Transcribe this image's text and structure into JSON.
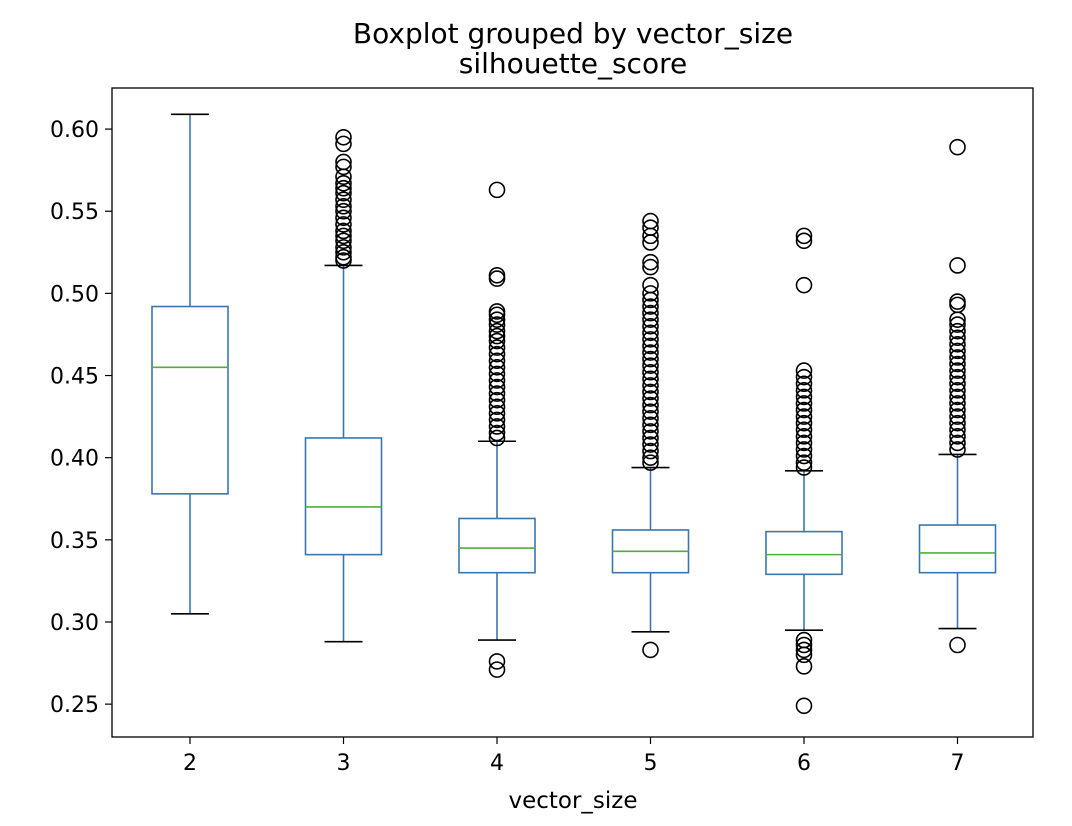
{
  "chart_data": {
    "type": "box",
    "title": "Boxplot grouped by vector_size",
    "subtitle": "silhouette_score",
    "xlabel": "vector_size",
    "ylabel": "",
    "ylim": [
      0.23,
      0.625
    ],
    "y_ticks": [
      "0.25",
      "0.30",
      "0.35",
      "0.40",
      "0.45",
      "0.50",
      "0.55",
      "0.60"
    ],
    "y_tick_values": [
      0.25,
      0.3,
      0.35,
      0.4,
      0.45,
      0.5,
      0.55,
      0.6
    ],
    "categories": [
      "2",
      "3",
      "4",
      "5",
      "6",
      "7"
    ],
    "grid": false,
    "legend": "none",
    "colors": {
      "box": "#3b75af",
      "median": "#4daf3a",
      "whisker_cap": "#000000",
      "flier": "#000000"
    },
    "boxes": [
      {
        "category": "2",
        "whislo": 0.305,
        "q1": 0.378,
        "median": 0.455,
        "q3": 0.492,
        "whishi": 0.609,
        "fliers": []
      },
      {
        "category": "3",
        "whislo": 0.288,
        "q1": 0.341,
        "median": 0.37,
        "q3": 0.412,
        "whishi": 0.517,
        "fliers": [
          0.595,
          0.591,
          0.58,
          0.577,
          0.571,
          0.567,
          0.564,
          0.561,
          0.557,
          0.553,
          0.55,
          0.546,
          0.542,
          0.538,
          0.535,
          0.532,
          0.528,
          0.525,
          0.522,
          0.52
        ]
      },
      {
        "category": "4",
        "whislo": 0.289,
        "q1": 0.33,
        "median": 0.345,
        "q3": 0.363,
        "whishi": 0.41,
        "fliers": [
          0.563,
          0.511,
          0.509,
          0.489,
          0.487,
          0.484,
          0.481,
          0.477,
          0.474,
          0.471,
          0.467,
          0.463,
          0.459,
          0.455,
          0.451,
          0.447,
          0.443,
          0.439,
          0.435,
          0.431,
          0.427,
          0.423,
          0.419,
          0.415,
          0.412,
          0.276,
          0.271
        ]
      },
      {
        "category": "5",
        "whislo": 0.294,
        "q1": 0.33,
        "median": 0.343,
        "q3": 0.356,
        "whishi": 0.394,
        "fliers": [
          0.544,
          0.54,
          0.535,
          0.531,
          0.519,
          0.516,
          0.505,
          0.5,
          0.496,
          0.492,
          0.488,
          0.484,
          0.48,
          0.476,
          0.472,
          0.468,
          0.464,
          0.46,
          0.456,
          0.452,
          0.448,
          0.444,
          0.44,
          0.436,
          0.432,
          0.428,
          0.424,
          0.42,
          0.416,
          0.412,
          0.408,
          0.404,
          0.4,
          0.397,
          0.283
        ]
      },
      {
        "category": "6",
        "whislo": 0.295,
        "q1": 0.329,
        "median": 0.341,
        "q3": 0.355,
        "whishi": 0.392,
        "fliers": [
          0.535,
          0.532,
          0.505,
          0.453,
          0.449,
          0.445,
          0.441,
          0.437,
          0.433,
          0.429,
          0.425,
          0.421,
          0.417,
          0.413,
          0.409,
          0.405,
          0.401,
          0.397,
          0.394,
          0.289,
          0.286,
          0.283,
          0.28,
          0.273,
          0.249
        ]
      },
      {
        "category": "7",
        "whislo": 0.296,
        "q1": 0.33,
        "median": 0.342,
        "q3": 0.359,
        "whishi": 0.402,
        "fliers": [
          0.589,
          0.517,
          0.495,
          0.493,
          0.484,
          0.481,
          0.477,
          0.473,
          0.469,
          0.465,
          0.461,
          0.457,
          0.453,
          0.449,
          0.445,
          0.441,
          0.437,
          0.433,
          0.429,
          0.425,
          0.421,
          0.417,
          0.413,
          0.409,
          0.405,
          0.286
        ]
      }
    ]
  }
}
